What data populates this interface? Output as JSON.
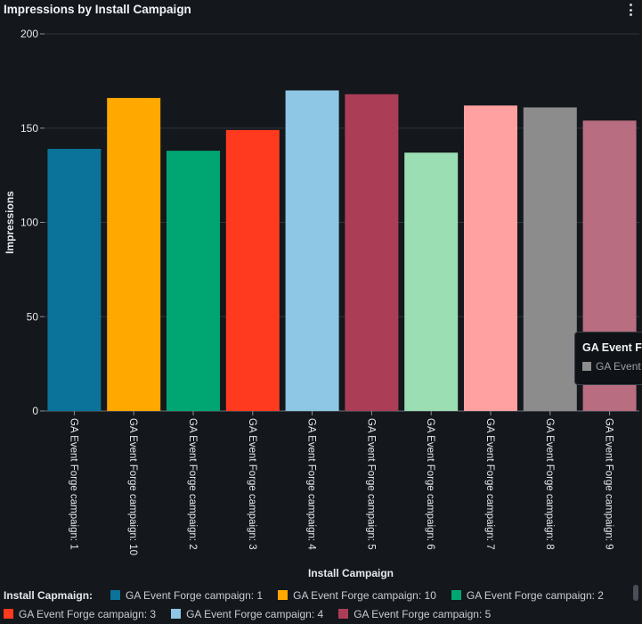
{
  "chart_data": {
    "type": "bar",
    "title": "Impressions by Install Campaign",
    "xlabel": "Install Campaign",
    "ylabel": "Impressions",
    "ylim": [
      0,
      200
    ],
    "yticks": [
      "0",
      "50",
      "100",
      "150",
      "200"
    ],
    "grid": true,
    "categories": [
      "GA Event Forge campaign: 1",
      "GA Event Forge campaign: 10",
      "GA Event Forge campaign: 2",
      "GA Event Forge campaign: 3",
      "GA Event Forge campaign: 4",
      "GA Event Forge campaign: 5",
      "GA Event Forge campaign: 6",
      "GA Event Forge campaign: 7",
      "GA Event Forge campaign: 8",
      "GA Event Forge campaign: 9"
    ],
    "values": [
      139,
      166,
      138,
      149,
      170,
      168,
      137,
      162,
      161,
      154
    ],
    "colors": [
      "#0b7399",
      "#ffa800",
      "#00a672",
      "#ff3a1f",
      "#8ec7e6",
      "#ab3e56",
      "#9bdeb4",
      "#ffa1a1",
      "#8c8c8c",
      "#b86e80"
    ],
    "legend_position": "bottom"
  },
  "legend": {
    "title": "Install Capmaign:",
    "rows": [
      [
        {
          "label": "GA Event Forge campaign: 1",
          "color": "#0b7399"
        },
        {
          "label": "GA Event Forge campaign: 10",
          "color": "#ffa800"
        },
        {
          "label": "GA Event Forge campaign: 2",
          "color": "#00a672"
        }
      ],
      [
        {
          "label": "GA Event Forge campaign: 3",
          "color": "#ff3a1f"
        },
        {
          "label": "GA Event Forge campaign: 4",
          "color": "#8ec7e6"
        },
        {
          "label": "GA Event Forge campaign: 5",
          "color": "#ab3e56"
        }
      ]
    ]
  },
  "tooltip": {
    "title": "GA Event F",
    "row_text": "GA Event",
    "swatch_color": "#8c8c8c"
  },
  "menu_icon": "kebab-menu-icon"
}
